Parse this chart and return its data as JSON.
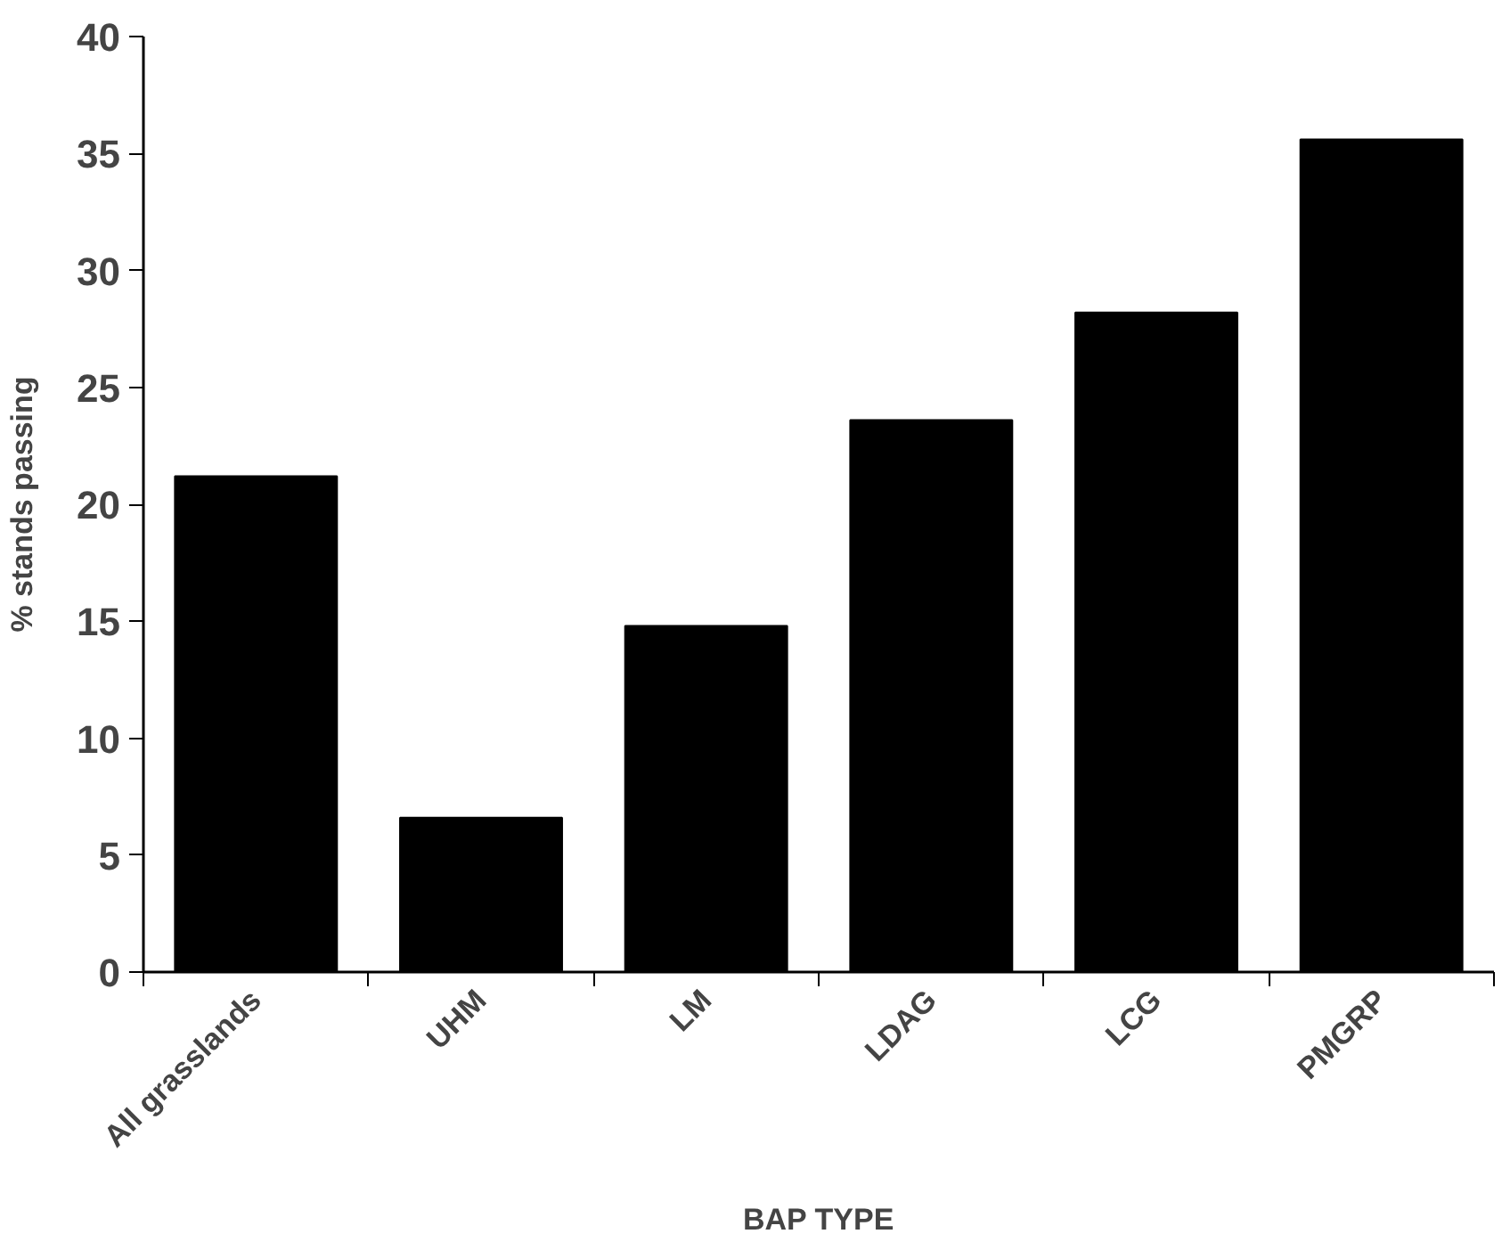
{
  "chart_data": {
    "type": "bar",
    "xlabel": "BAP TYPE",
    "ylabel": "% stands passing",
    "categories": [
      "All grasslands",
      "UHM",
      "LM",
      "LDAG",
      "LCG",
      "PMGRP"
    ],
    "values": [
      21.2,
      6.6,
      14.8,
      23.6,
      28.2,
      35.6
    ],
    "color": "#000000",
    "ylim": [
      0,
      40
    ],
    "yticks": [
      0,
      5,
      10,
      15,
      20,
      25,
      30,
      35,
      40
    ],
    "grid": false
  }
}
